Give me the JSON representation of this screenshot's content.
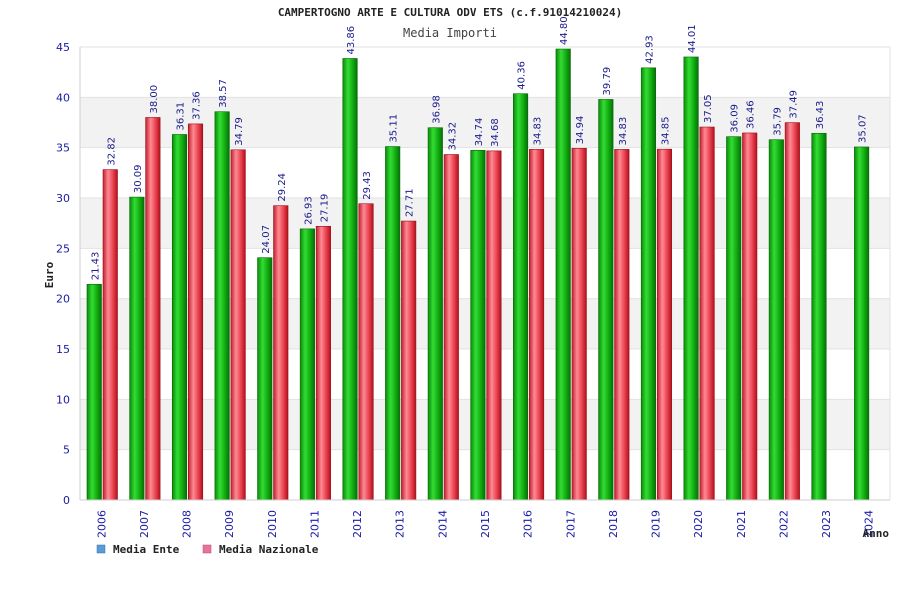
{
  "chart_data": {
    "type": "bar",
    "title": "CAMPERTOGNO ARTE E CULTURA ODV ETS (c.f.91014210024)",
    "subtitle": "Media Importi",
    "xlabel": "Anno",
    "ylabel": "Euro",
    "ylim": [
      0,
      45
    ],
    "yticks": [
      0,
      5,
      10,
      15,
      20,
      25,
      30,
      35,
      40,
      45
    ],
    "grid": true,
    "legend_placement": "bottom-left",
    "categories": [
      "2006",
      "2007",
      "2008",
      "2009",
      "2010",
      "2011",
      "2012",
      "2013",
      "2014",
      "2015",
      "2016",
      "2017",
      "2018",
      "2019",
      "2020",
      "2021",
      "2022",
      "2023",
      "2024"
    ],
    "series": [
      {
        "name": "Media Ente",
        "legend_color": "#5b9bd5",
        "bar_color": "#11bb11",
        "values": [
          21.43,
          30.09,
          36.31,
          38.57,
          24.07,
          26.93,
          43.86,
          35.11,
          36.98,
          34.74,
          40.36,
          44.8,
          39.79,
          42.93,
          44.01,
          36.09,
          35.79,
          36.43,
          35.07
        ],
        "labels": [
          "21.43",
          "30.09",
          "36.31",
          "38.57",
          "24.07",
          "26.93",
          "43.86",
          "35.11",
          "36.98",
          "34.74",
          "40.36",
          "44.80",
          "39.79",
          "42.93",
          "44.01",
          "36.09",
          "35.79",
          "36.43",
          "35.07"
        ]
      },
      {
        "name": "Media Nazionale",
        "legend_color": "#e8749a",
        "bar_color": "#e84050",
        "values": [
          32.82,
          38.0,
          37.36,
          34.79,
          29.24,
          27.19,
          29.43,
          27.71,
          34.32,
          34.68,
          34.83,
          34.94,
          34.83,
          34.85,
          37.05,
          36.46,
          37.49,
          null,
          null
        ],
        "labels": [
          "32.82",
          "38.00",
          "37.36",
          "34.79",
          "29.24",
          "27.19",
          "29.43",
          "27.71",
          "34.32",
          "34.68",
          "34.83",
          "34.94",
          "34.83",
          "34.85",
          "37.05",
          "36.46",
          "37.49",
          null,
          null
        ]
      }
    ]
  }
}
